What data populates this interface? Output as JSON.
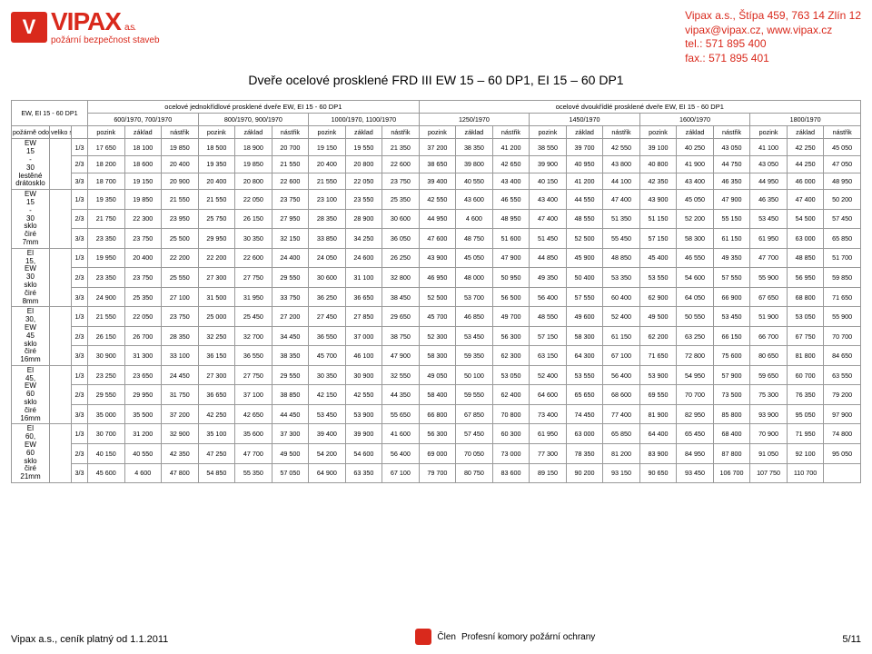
{
  "company": {
    "name": "VIPAX",
    "suffix": "a.s.",
    "tagline": "požární bezpečnost staveb",
    "addr1": "Vipax a.s., Štípa 459, 763 14 Zlín 12",
    "addr2": "vipax@vipax.cz, www.vipax.cz",
    "tel": "tel.: 571 895 400",
    "fax": "fax.: 571 895 401"
  },
  "title": "Dveře ocelové prosklené FRD III EW 15 – 60 DP1, EI 15 – 60 DP1",
  "thead": {
    "corner": "EW, EI 15 - 60 DP1",
    "span1": "ocelové jednokřídlové prosklené dveře EW, EI 15 - 60 DP1",
    "span2": "ocelové dvoukřídlé prosklené dveře EW, EI 15 - 60 DP1",
    "sizes": [
      "600/1970, 700/1970",
      "800/1970, 900/1970",
      "1000/1970, 1100/1970",
      "1250/1970",
      "1450/1970",
      "1600/1970",
      "1800/1970"
    ],
    "col_left1": "požárně odolné sklo",
    "col_left2": "veliko st proskl ení",
    "sub": [
      "pozink",
      "základ",
      "nástřik"
    ]
  },
  "groups": [
    {
      "label": "EW 15 - 30 lestěné drátosklo",
      "rows": [
        {
          "f": "1/3",
          "v": [
            "17 650",
            "18 100",
            "19 850",
            "18 500",
            "18 900",
            "20 700",
            "19 150",
            "19 550",
            "21 350",
            "37 200",
            "38 350",
            "41 200",
            "38 550",
            "39 700",
            "42 550",
            "39 100",
            "40 250",
            "43 050",
            "41 100",
            "42 250",
            "45 050"
          ]
        },
        {
          "f": "2/3",
          "v": [
            "18 200",
            "18 600",
            "20 400",
            "19 350",
            "19 850",
            "21 550",
            "20 400",
            "20 800",
            "22 600",
            "38 650",
            "39 800",
            "42 650",
            "39 900",
            "40 950",
            "43 800",
            "40 800",
            "41 900",
            "44 750",
            "43 050",
            "44 250",
            "47 050"
          ]
        },
        {
          "f": "3/3",
          "v": [
            "18 700",
            "19 150",
            "20 900",
            "20 400",
            "20 800",
            "22 600",
            "21 550",
            "22 050",
            "23 750",
            "39 400",
            "40 550",
            "43 400",
            "40 150",
            "41 200",
            "44 100",
            "42 350",
            "43 400",
            "46 350",
            "44 950",
            "46 000",
            "48 950"
          ]
        }
      ]
    },
    {
      "label": "EW 15 - 30 sklo čiré 7mm",
      "rows": [
        {
          "f": "1/3",
          "v": [
            "19 350",
            "19 850",
            "21 550",
            "21 550",
            "22 050",
            "23 750",
            "23 100",
            "23 550",
            "25 350",
            "42 550",
            "43 600",
            "46 550",
            "43 400",
            "44 550",
            "47 400",
            "43 900",
            "45 050",
            "47 900",
            "46 350",
            "47 400",
            "50 200"
          ]
        },
        {
          "f": "2/3",
          "v": [
            "21 750",
            "22 300",
            "23 950",
            "25 750",
            "26 150",
            "27 950",
            "28 350",
            "28 900",
            "30 600",
            "44 950",
            "4 600",
            "48 950",
            "47 400",
            "48 550",
            "51 350",
            "51 150",
            "52 200",
            "55 150",
            "53 450",
            "54 500",
            "57 450"
          ]
        },
        {
          "f": "3/3",
          "v": [
            "23 350",
            "23 750",
            "25 500",
            "29 950",
            "30 350",
            "32 150",
            "33 850",
            "34 250",
            "36 050",
            "47 600",
            "48 750",
            "51 600",
            "51 450",
            "52 500",
            "55 450",
            "57 150",
            "58 300",
            "61 150",
            "61 950",
            "63 000",
            "65 850"
          ]
        }
      ]
    },
    {
      "label": "EI 15, EW 30 sklo čiré 8mm",
      "rows": [
        {
          "f": "1/3",
          "v": [
            "19 950",
            "20 400",
            "22 200",
            "22 200",
            "22 600",
            "24 400",
            "24 050",
            "24 600",
            "26 250",
            "43 900",
            "45 050",
            "47 900",
            "44 850",
            "45 900",
            "48 850",
            "45 400",
            "46 550",
            "49 350",
            "47 700",
            "48 850",
            "51 700"
          ]
        },
        {
          "f": "2/3",
          "v": [
            "23 350",
            "23 750",
            "25 550",
            "27 300",
            "27 750",
            "29 550",
            "30 600",
            "31 100",
            "32 800",
            "46 950",
            "48 000",
            "50 950",
            "49 350",
            "50 400",
            "53 350",
            "53 550",
            "54 600",
            "57 550",
            "55 900",
            "56 950",
            "59 850"
          ]
        },
        {
          "f": "3/3",
          "v": [
            "24 900",
            "25 350",
            "27 100",
            "31 500",
            "31 950",
            "33 750",
            "36 250",
            "36 650",
            "38 450",
            "52 500",
            "53 700",
            "56 500",
            "56 400",
            "57 550",
            "60 400",
            "62 900",
            "64 050",
            "66 900",
            "67 650",
            "68 800",
            "71 650"
          ]
        }
      ]
    },
    {
      "label": "EI 30, EW 45 sklo čiré 16mm",
      "rows": [
        {
          "f": "1/3",
          "v": [
            "21 550",
            "22 050",
            "23 750",
            "25 000",
            "25 450",
            "27 200",
            "27 450",
            "27 850",
            "29 650",
            "45 700",
            "46 850",
            "49 700",
            "48 550",
            "49 600",
            "52 400",
            "49 500",
            "50 550",
            "53 450",
            "51 900",
            "53 050",
            "55 900"
          ]
        },
        {
          "f": "2/3",
          "v": [
            "26 150",
            "26 700",
            "28 350",
            "32 250",
            "32 700",
            "34 450",
            "36 550",
            "37 000",
            "38 750",
            "52 300",
            "53 450",
            "56 300",
            "57 150",
            "58 300",
            "61 150",
            "62 200",
            "63 250",
            "66 150",
            "66 700",
            "67 750",
            "70 700"
          ]
        },
        {
          "f": "3/3",
          "v": [
            "30 900",
            "31 300",
            "33 100",
            "36 150",
            "36 550",
            "38 350",
            "45 700",
            "46 100",
            "47 900",
            "58 300",
            "59 350",
            "62 300",
            "63 150",
            "64 300",
            "67 100",
            "71 650",
            "72 800",
            "75 600",
            "80 650",
            "81 800",
            "84 650"
          ]
        }
      ]
    },
    {
      "label": "EI 45, EW 60 sklo čiré 16mm",
      "rows": [
        {
          "f": "1/3",
          "v": [
            "23 250",
            "23 650",
            "24 450",
            "27 300",
            "27 750",
            "29 550",
            "30 350",
            "30 900",
            "32 550",
            "49 050",
            "50 100",
            "53 050",
            "52 400",
            "53 550",
            "56 400",
            "53 900",
            "54 950",
            "57 900",
            "59 650",
            "60 700",
            "63 550"
          ]
        },
        {
          "f": "2/3",
          "v": [
            "29 550",
            "29 950",
            "31 750",
            "36 650",
            "37 100",
            "38 850",
            "42 150",
            "42 550",
            "44 350",
            "58 400",
            "59 550",
            "62 400",
            "64 600",
            "65 650",
            "68 600",
            "69 550",
            "70 700",
            "73 500",
            "75 300",
            "76 350",
            "79 200"
          ]
        },
        {
          "f": "3/3",
          "v": [
            "35 000",
            "35 500",
            "37 200",
            "42 250",
            "42 650",
            "44 450",
            "53 450",
            "53 900",
            "55 650",
            "66 800",
            "67 850",
            "70 800",
            "73 400",
            "74 450",
            "77 400",
            "81 900",
            "82 950",
            "85 800",
            "93 900",
            "95 050",
            "97 900"
          ]
        }
      ]
    },
    {
      "label": "EI 60, EW 60 sklo čiré 21mm",
      "rows": [
        {
          "f": "1/3",
          "v": [
            "30 700",
            "31 200",
            "32 900",
            "35 100",
            "35 600",
            "37 300",
            "39 400",
            "39 900",
            "41 600",
            "56 300",
            "57 450",
            "60 300",
            "61 950",
            "63 000",
            "65 850",
            "64 400",
            "65 450",
            "68 400",
            "70 900",
            "71 950",
            "74 800"
          ]
        },
        {
          "f": "2/3",
          "v": [
            "40 150",
            "40 550",
            "42 350",
            "47 250",
            "47 700",
            "49 500",
            "54 200",
            "54 600",
            "56 400",
            "69 000",
            "70 050",
            "73 000",
            "77 300",
            "78 350",
            "81 200",
            "83 900",
            "84 950",
            "87 800",
            "91 050",
            "92 100",
            "95 050"
          ]
        },
        {
          "f": "3/3",
          "v": [
            "45 600",
            "4 600",
            "47 800",
            "54 850",
            "55 350",
            "57 050",
            "64 900",
            "63 350",
            "67 100",
            "79 700",
            "80 750",
            "83 600",
            "89 150",
            "90 200",
            "93 150",
            "90 650",
            "93 450",
            "106 700",
            "107 750",
            "110 700",
            ""
          ]
        }
      ]
    }
  ],
  "footer": {
    "left": "Vipax a.s., ceník platný od 1.1.2011",
    "center": "Profesní komory požární ochrany",
    "center_prefix": "Člen",
    "right": "5/11"
  },
  "colors": {
    "brand": "#d9291c",
    "border": "#999"
  }
}
